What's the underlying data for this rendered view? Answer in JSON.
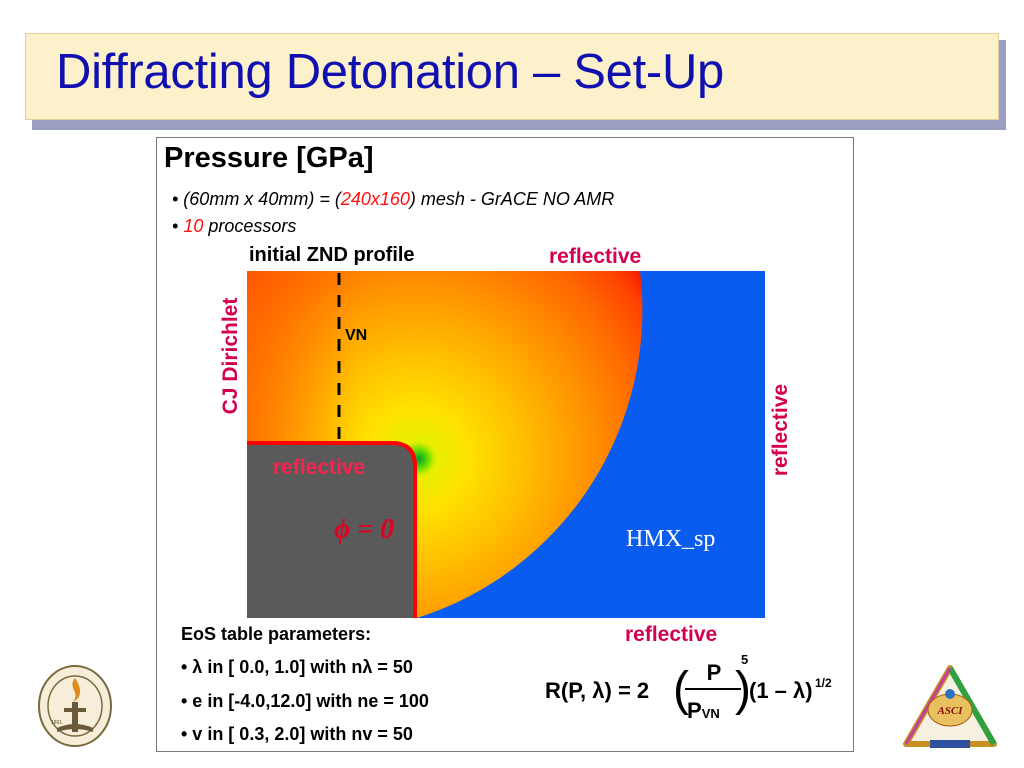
{
  "title": "Diffracting Detonation – Set-Up",
  "panel": {
    "heading": "Pressure [GPa]",
    "bullets": [
      {
        "pre": "• (60mm x 40mm) = (",
        "hl": "240x160",
        "post": ") mesh - GrACE NO AMR"
      },
      {
        "pre": "• ",
        "hl": "10",
        "post": " processors"
      }
    ],
    "labels": {
      "initial_znd": "initial ZND profile",
      "reflective_top": "reflective",
      "reflective_right": "reflective",
      "reflective_step": "reflective",
      "reflective_bottom": "reflective",
      "cj_dirichlet": "CJ Dirichlet",
      "vn": "VN",
      "phi": "ϕ = 0",
      "material": "HMX_sp"
    },
    "eos": {
      "title": "EoS table parameters:",
      "items": [
        "• λ in [ 0.0,  1.0] with nλ = 50",
        "• e in [-4.0,12.0] with ne = 100",
        "• v in [ 0.3,  2.0] with nv = 50"
      ]
    },
    "formula": {
      "lhs": "R(P, λ) = 2",
      "num": "P",
      "den": "P",
      "den_sub": "VN",
      "exp": "5",
      "factor": "(1 – λ)",
      "exp2": "1/2"
    }
  },
  "logos": {
    "left": "caltech-seal-icon",
    "right": "asci-logo-icon"
  },
  "colors": {
    "title_text": "#1010b0",
    "title_bg": "#fdf1cc",
    "accent_label": "#d4004f",
    "highlight": "#ff1010",
    "solid_wall": "#5a5a5a",
    "background_field": "#0a5cf0"
  }
}
